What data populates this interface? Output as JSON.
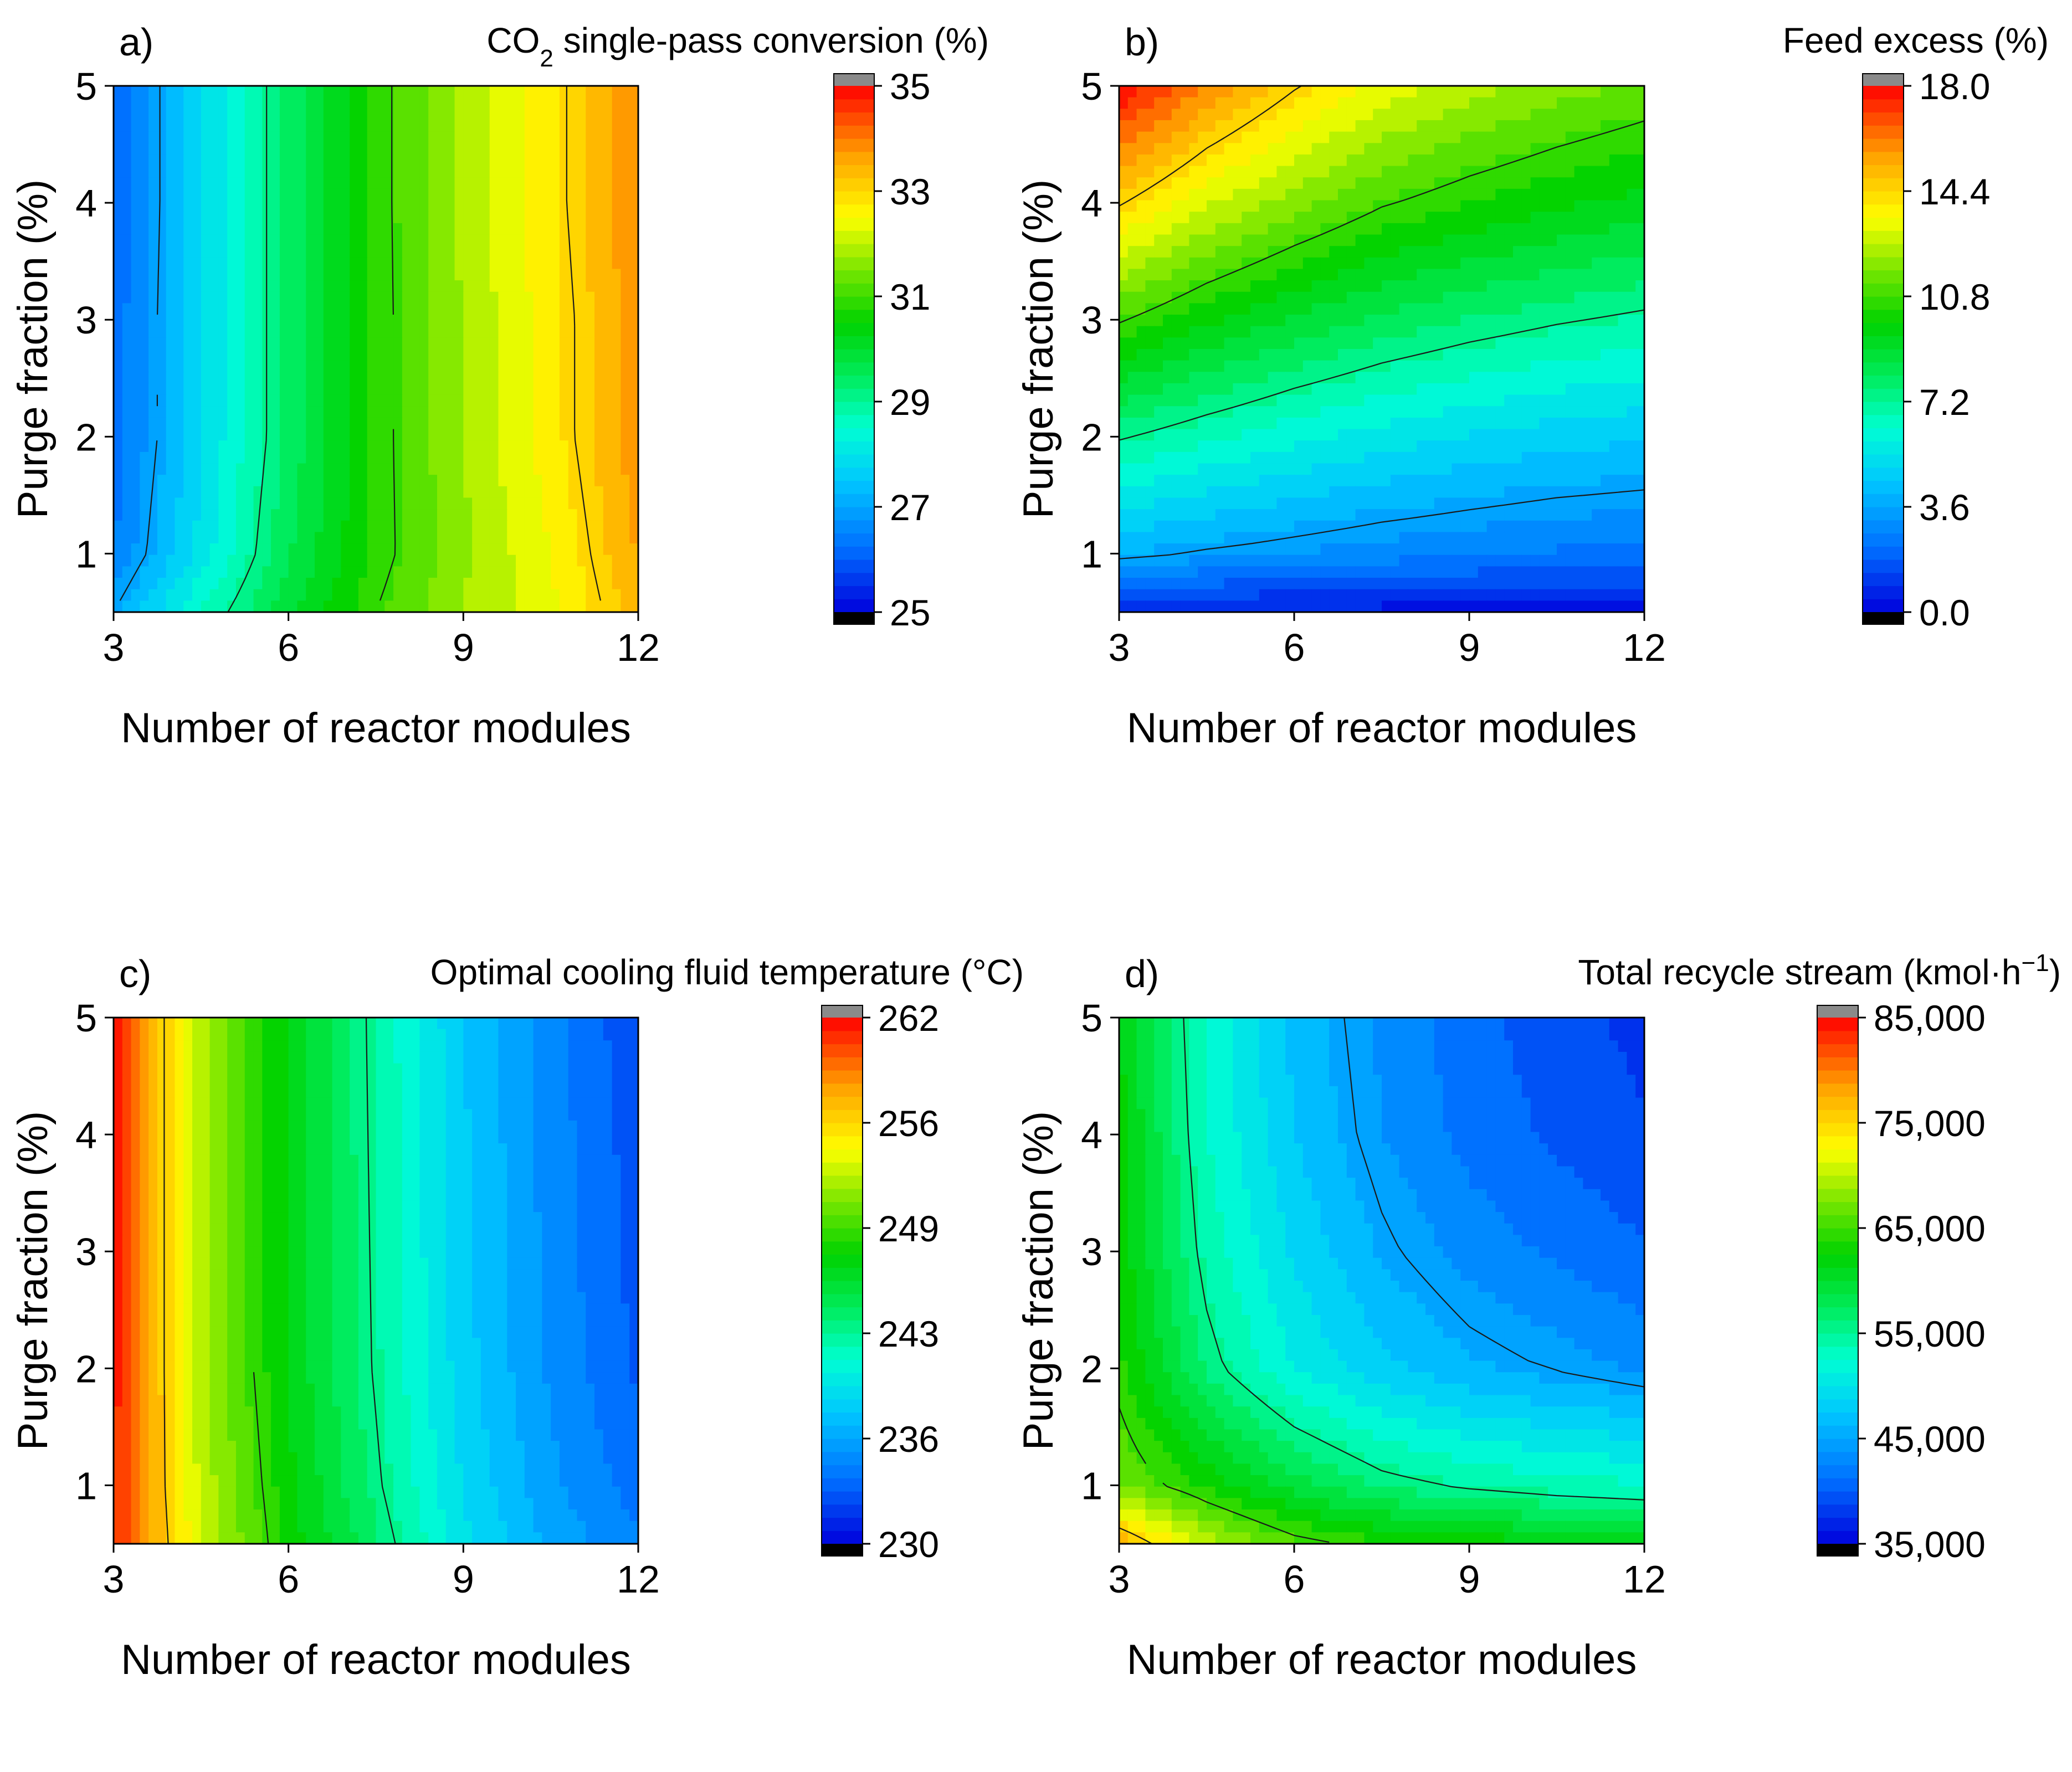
{
  "chart_data": [
    {
      "type": "contour",
      "panel_label": "a)",
      "title_main": "CO",
      "title_sub": "2",
      "title_rest": " single-pass conversion (%)",
      "xlabel": "Number of reactor modules",
      "ylabel": "Purge fraction (%)",
      "xlim": [
        3,
        12
      ],
      "ylim": [
        0.5,
        5
      ],
      "x_ticks": [
        "3",
        "6",
        "9",
        "12"
      ],
      "y_ticks": [
        "1",
        "2",
        "3",
        "4",
        "5"
      ],
      "colorbar": {
        "min": 25,
        "max": 35,
        "ticks": [
          "25",
          "27",
          "29",
          "31",
          "33",
          "35"
        ]
      },
      "contour_levels": [
        27,
        29,
        31,
        33
      ],
      "x": [
        3,
        4.5,
        6,
        7.5,
        9,
        10.5,
        12
      ],
      "y": [
        0.5,
        1,
        2,
        3,
        4,
        5
      ],
      "z": [
        [
          27.0,
          28.6,
          29.9,
          31.0,
          31.8,
          32.4,
          33.4
        ],
        [
          26.4,
          28.0,
          29.6,
          30.8,
          31.7,
          32.5,
          33.6
        ],
        [
          26.2,
          27.8,
          29.4,
          30.8,
          31.8,
          32.7,
          33.8
        ],
        [
          26.2,
          27.8,
          29.4,
          30.8,
          31.8,
          32.7,
          33.8
        ],
        [
          26.1,
          27.8,
          29.4,
          30.8,
          31.9,
          32.8,
          33.9
        ],
        [
          26.1,
          27.8,
          29.4,
          30.8,
          31.9,
          32.8,
          33.9
        ]
      ]
    },
    {
      "type": "contour",
      "panel_label": "b)",
      "title_main": "Feed excess (%)",
      "title_sub": "",
      "title_rest": "",
      "xlabel": "Number of reactor modules",
      "ylabel": "Purge fraction (%)",
      "xlim": [
        3,
        12
      ],
      "ylim": [
        0.5,
        5
      ],
      "x_ticks": [
        "3",
        "6",
        "9",
        "12"
      ],
      "y_ticks": [
        "1",
        "2",
        "3",
        "4",
        "5"
      ],
      "colorbar": {
        "min": 0,
        "max": 18,
        "ticks": [
          "0.0",
          "3.6",
          "7.2",
          "10.8",
          "14.4",
          "18.0"
        ]
      },
      "contour_levels": [
        3.6,
        7.2,
        10.8,
        14.4
      ],
      "x": [
        3,
        4.5,
        6,
        7.5,
        9,
        10.5,
        12
      ],
      "y": [
        0.5,
        1,
        2,
        3,
        4,
        5
      ],
      "z": [
        [
          0.5,
          0.5,
          0.4,
          0.4,
          0.3,
          0.3,
          0.3
        ],
        [
          3.9,
          3.5,
          3.2,
          2.9,
          2.7,
          2.5,
          2.4
        ],
        [
          7.3,
          6.6,
          6.0,
          5.5,
          5.1,
          4.8,
          4.6
        ],
        [
          10.9,
          9.8,
          8.9,
          8.2,
          7.7,
          7.3,
          7.0
        ],
        [
          14.5,
          13.0,
          11.9,
          10.9,
          10.3,
          9.8,
          9.4
        ],
        [
          18.0,
          16.0,
          14.5,
          13.3,
          12.5,
          11.9,
          11.4
        ]
      ]
    },
    {
      "type": "contour",
      "panel_label": "c)",
      "title_main": "Optimal cooling fluid temperature (°C)",
      "title_sub": "",
      "title_rest": "",
      "xlabel": "Number of reactor modules",
      "ylabel": "Purge fraction (%)",
      "xlim": [
        3,
        12
      ],
      "ylim": [
        0.5,
        5
      ],
      "x_ticks": [
        "3",
        "6",
        "9",
        "12"
      ],
      "y_ticks": [
        "1",
        "2",
        "3",
        "4",
        "5"
      ],
      "colorbar": {
        "min": 230,
        "max": 262,
        "ticks": [
          "230",
          "236",
          "243",
          "249",
          "256",
          "262"
        ]
      },
      "contour_levels": [
        243,
        249,
        256
      ],
      "x": [
        3,
        4.5,
        6,
        7.5,
        9,
        10.5,
        12
      ],
      "y": [
        0.5,
        1,
        2,
        3,
        4,
        5
      ],
      "z": [
        [
          261.0,
          253.0,
          247.8,
          244.0,
          239.5,
          236.5,
          234.8
        ],
        [
          261.0,
          252.5,
          247.5,
          243.3,
          239.0,
          236.0,
          234.0
        ],
        [
          261.5,
          252.0,
          247.0,
          242.8,
          238.5,
          235.5,
          233.2
        ],
        [
          261.5,
          252.0,
          247.0,
          242.7,
          238.3,
          235.3,
          233.0
        ],
        [
          261.5,
          252.0,
          247.0,
          242.6,
          238.2,
          235.2,
          232.8
        ],
        [
          261.5,
          252.0,
          247.0,
          242.5,
          238.0,
          235.0,
          232.5
        ]
      ]
    },
    {
      "type": "contour",
      "panel_label": "d)",
      "title_main": "Total recycle stream (kmol·h",
      "title_sub": "",
      "title_sup": "−1",
      "title_rest": ")",
      "xlabel": "Number of reactor modules",
      "ylabel": "Purge fraction (%)",
      "xlim": [
        3,
        12
      ],
      "ylim": [
        0.5,
        5
      ],
      "x_ticks": [
        "3",
        "6",
        "9",
        "12"
      ],
      "y_ticks": [
        "1",
        "2",
        "3",
        "4",
        "5"
      ],
      "colorbar": {
        "min": 35000,
        "max": 85000,
        "ticks": [
          "35,000",
          "45,000",
          "55,000",
          "65,000",
          "75,000",
          "85,000"
        ]
      },
      "contour_levels": [
        45000,
        55000,
        65000,
        75000
      ],
      "x": [
        3,
        4.5,
        6,
        7.5,
        9,
        10.5,
        12
      ],
      "y": [
        0.5,
        1,
        2,
        3,
        4,
        5
      ],
      "z": [
        [
          78000,
          70000,
          66000,
          64000,
          63000,
          62000,
          61000
        ],
        [
          67000,
          63000,
          59000,
          56000,
          54500,
          53500,
          53000
        ],
        [
          64000,
          56000,
          51000,
          48000,
          46000,
          44800,
          43500
        ],
        [
          63000,
          54000,
          49000,
          45500,
          43200,
          41800,
          40500
        ],
        [
          62500,
          53000,
          47500,
          44000,
          41500,
          40000,
          38800
        ],
        [
          62000,
          52500,
          47000,
          43500,
          41000,
          39300,
          38000
        ]
      ]
    }
  ]
}
